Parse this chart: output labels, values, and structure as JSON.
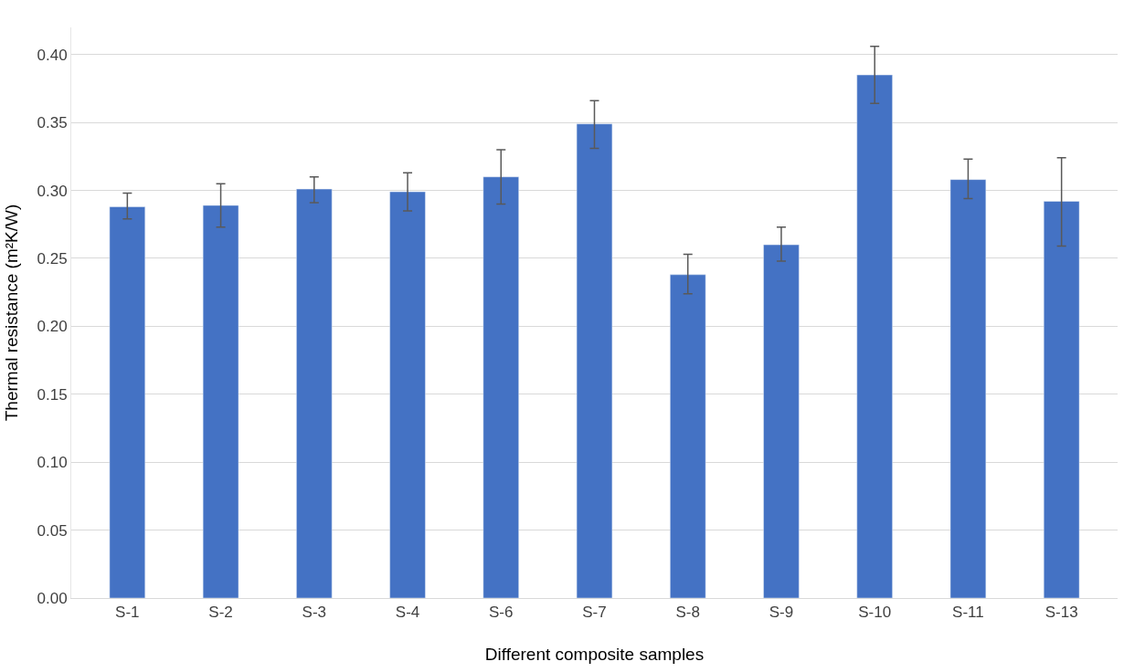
{
  "chart_data": {
    "type": "bar",
    "xlabel": "Different composite samples",
    "ylabel": "Thermal resistance (m²K/W)",
    "categories": [
      "S-1",
      "S-2",
      "S-3",
      "S-4",
      "S-6",
      "S-7",
      "S-8",
      "S-9",
      "S-10",
      "S-11",
      "S-13"
    ],
    "values": [
      0.288,
      0.289,
      0.301,
      0.299,
      0.31,
      0.349,
      0.238,
      0.26,
      0.385,
      0.308,
      0.292
    ],
    "errors": [
      [
        0.279,
        0.298
      ],
      [
        0.273,
        0.305
      ],
      [
        0.291,
        0.31
      ],
      [
        0.285,
        0.313
      ],
      [
        0.29,
        0.33
      ],
      [
        0.331,
        0.366
      ],
      [
        0.224,
        0.253
      ],
      [
        0.248,
        0.273
      ],
      [
        0.364,
        0.406
      ],
      [
        0.294,
        0.323
      ],
      [
        0.259,
        0.324
      ]
    ],
    "color": "#4472c4",
    "ylim": [
      0,
      0.42
    ],
    "yticks": [
      {
        "value": 0,
        "label": "0.00"
      },
      {
        "value": 0.05,
        "label": "0.05"
      },
      {
        "value": 0.1,
        "label": "0.10"
      },
      {
        "value": 0.15,
        "label": "0.15"
      },
      {
        "value": 0.2,
        "label": "0.20"
      },
      {
        "value": 0.25,
        "label": "0.25"
      },
      {
        "value": 0.3,
        "label": "0.30"
      },
      {
        "value": 0.35,
        "label": "0.35"
      },
      {
        "value": 0.4,
        "label": "0.40"
      }
    ],
    "grid": "y"
  }
}
